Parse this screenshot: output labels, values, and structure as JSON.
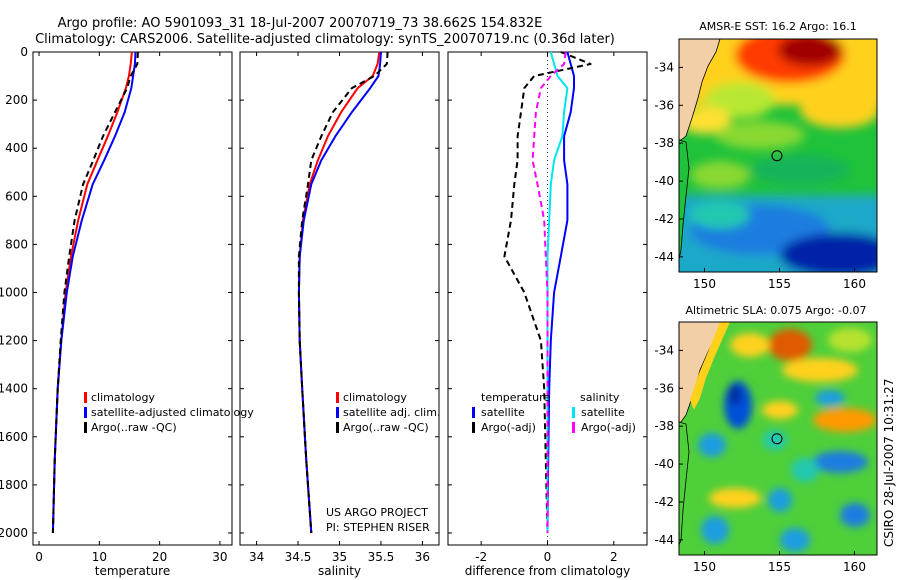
{
  "title_line1": "Argo profile: AO 5901093_31 18-Jul-2007 20070719_73 38.662S 154.832E",
  "title_line2": "Climatology: CARS2006. Satellite-adjusted climatology: synTS_20070719.nc (0.36d later)",
  "side_stamp": "CSIRO 28-Jul-2007 10:31:27",
  "colors": {
    "climatology": "#ff0000",
    "satellite": "#0000ff",
    "argo": "#000000",
    "salinity_satellite": "#00e5ee",
    "salinity_argo": "#ff00ff"
  },
  "chart_data": [
    {
      "type": "line",
      "name": "temperature",
      "xlabel": "temperature",
      "xlim": [
        -1,
        32
      ],
      "ylim": [
        2050,
        0
      ],
      "xticks": [
        0,
        10,
        20,
        30
      ],
      "yticks": [
        0,
        200,
        400,
        600,
        800,
        1000,
        1200,
        1400,
        1600,
        1800,
        2000
      ],
      "legend": [
        "climatology",
        "satellite-adjusted climatology",
        "Argo(..raw -QC)"
      ],
      "series": [
        {
          "name": "climatology",
          "x": [
            15.4,
            15.2,
            14.9,
            14.4,
            13.0,
            11.4,
            9.7,
            8.0,
            6.5,
            5.3,
            4.4,
            3.7,
            3.1,
            2.6,
            2.3
          ],
          "y": [
            0,
            50,
            100,
            150,
            250,
            350,
            450,
            550,
            700,
            850,
            1000,
            1200,
            1400,
            1700,
            2000
          ]
        },
        {
          "name": "satellite-adjusted climatology",
          "x": [
            16.0,
            15.9,
            15.6,
            15.3,
            14.2,
            12.6,
            10.8,
            8.9,
            7.1,
            5.6,
            4.6,
            3.7,
            3.1,
            2.6,
            2.3
          ],
          "y": [
            0,
            50,
            100,
            150,
            250,
            350,
            450,
            550,
            700,
            850,
            1000,
            1200,
            1400,
            1700,
            2000
          ]
        },
        {
          "name": "Argo(..raw -QC)",
          "x": [
            16.4,
            16.3,
            15.2,
            14.6,
            12.6,
            10.6,
            9.0,
            7.3,
            5.9,
            5.0,
            4.2,
            3.6,
            3.1,
            2.6,
            2.3
          ],
          "y": [
            0,
            50,
            100,
            150,
            250,
            350,
            450,
            550,
            700,
            850,
            1000,
            1200,
            1400,
            1700,
            2000
          ]
        }
      ]
    },
    {
      "type": "line",
      "name": "salinity",
      "xlabel": "salinity",
      "xlim": [
        33.8,
        36.2
      ],
      "ylim": [
        2050,
        0
      ],
      "xticks": [
        34,
        34.5,
        35,
        35.5,
        36
      ],
      "yticks": [
        0,
        200,
        400,
        600,
        800,
        1000,
        1200,
        1400,
        1600,
        1800,
        2000
      ],
      "legend": [
        "climatology",
        "satellite adj. clim.",
        "Argo(..raw -QC)"
      ],
      "annotations": [
        "US ARGO PROJECT",
        "PI: STEPHEN RISER"
      ],
      "series": [
        {
          "name": "climatology",
          "x": [
            35.48,
            35.46,
            35.4,
            35.22,
            35.02,
            34.86,
            34.74,
            34.64,
            34.56,
            34.52,
            34.51,
            34.52,
            34.55,
            34.6,
            34.66
          ],
          "y": [
            0,
            50,
            100,
            150,
            250,
            350,
            450,
            550,
            700,
            850,
            1000,
            1200,
            1400,
            1700,
            2000
          ]
        },
        {
          "name": "satellite adj. clim.",
          "x": [
            35.5,
            35.49,
            35.47,
            35.37,
            35.15,
            34.95,
            34.78,
            34.66,
            34.57,
            34.52,
            34.51,
            34.52,
            34.55,
            34.6,
            34.66
          ],
          "y": [
            0,
            50,
            100,
            150,
            250,
            350,
            450,
            550,
            700,
            850,
            1000,
            1200,
            1400,
            1700,
            2000
          ]
        },
        {
          "name": "Argo(..raw -QC)",
          "x": [
            35.58,
            35.57,
            35.42,
            35.15,
            34.92,
            34.78,
            34.66,
            34.62,
            34.55,
            34.51,
            34.51,
            34.52,
            34.55,
            34.6,
            34.66
          ],
          "y": [
            0,
            50,
            100,
            150,
            250,
            350,
            450,
            550,
            700,
            850,
            1000,
            1200,
            1400,
            1700,
            2000
          ]
        }
      ]
    },
    {
      "type": "line",
      "name": "difference",
      "xlabel": "difference from climatology",
      "xlim": [
        -3,
        3
      ],
      "ylim": [
        2050,
        0
      ],
      "xticks": [
        -2,
        0,
        2
      ],
      "yticks": [
        0,
        200,
        400,
        600,
        800,
        1000,
        1200,
        1400,
        1600,
        1800,
        2000
      ],
      "legend": [
        "temperature",
        "satellite",
        "Argo(-adj)",
        "salinity",
        "satellite",
        "Argo(-adj)"
      ],
      "series": [
        {
          "name": "temperature satellite",
          "x": [
            0.6,
            0.7,
            0.8,
            0.8,
            0.7,
            0.5,
            0.5,
            0.6,
            0.6,
            0.4,
            0.2,
            0.1,
            0.05,
            0.02,
            0.0
          ],
          "y": [
            0,
            50,
            100,
            150,
            250,
            350,
            450,
            550,
            700,
            850,
            1000,
            1200,
            1400,
            1700,
            2000
          ]
        },
        {
          "name": "temperature Argo(-adj)",
          "x": [
            0.4,
            1.3,
            -0.4,
            -0.7,
            -0.8,
            -0.9,
            -0.9,
            -1.0,
            -1.1,
            -1.3,
            -0.7,
            -0.2,
            -0.1,
            -0.05,
            0.0
          ],
          "y": [
            0,
            50,
            100,
            150,
            250,
            350,
            450,
            550,
            700,
            850,
            1000,
            1200,
            1400,
            1700,
            2000
          ]
        },
        {
          "name": "salinity satellite",
          "x": [
            0.1,
            0.2,
            0.3,
            0.6,
            0.5,
            0.45,
            0.2,
            0.1,
            0.05,
            0.0,
            0.0,
            0.0,
            0.0,
            0.0,
            0.0
          ],
          "y": [
            0,
            50,
            100,
            150,
            250,
            350,
            450,
            550,
            700,
            850,
            1000,
            1200,
            1400,
            1700,
            2000
          ]
        },
        {
          "name": "salinity Argo(-adj)",
          "x": [
            0.55,
            0.5,
            0.1,
            -0.2,
            -0.35,
            -0.4,
            -0.45,
            -0.3,
            -0.1,
            -0.05,
            0.0,
            0.0,
            0.0,
            0.0,
            0.0
          ],
          "y": [
            0,
            50,
            100,
            150,
            250,
            350,
            450,
            550,
            700,
            850,
            1000,
            1200,
            1400,
            1700,
            2000
          ]
        }
      ]
    },
    {
      "type": "heatmap",
      "name": "sst-map",
      "title": "AMSR-E SST: 16.2 Argo: 16.1",
      "xticks": [
        150,
        155,
        160
      ],
      "yticks": [
        -34,
        -36,
        -38,
        -40,
        -42,
        -44
      ],
      "xlim": [
        148.3,
        161.5
      ],
      "ylim": [
        -44.8,
        -32.5
      ],
      "argo_position": [
        154.832,
        -38.662
      ]
    },
    {
      "type": "heatmap",
      "name": "sla-map",
      "title": "Altimetric SLA: 0.075 Argo: -0.07",
      "xticks": [
        150,
        155,
        160
      ],
      "yticks": [
        -34,
        -36,
        -38,
        -40,
        -42,
        -44
      ],
      "xlim": [
        148.3,
        161.5
      ],
      "ylim": [
        -44.8,
        -32.5
      ],
      "argo_position": [
        154.832,
        -38.662
      ]
    }
  ]
}
